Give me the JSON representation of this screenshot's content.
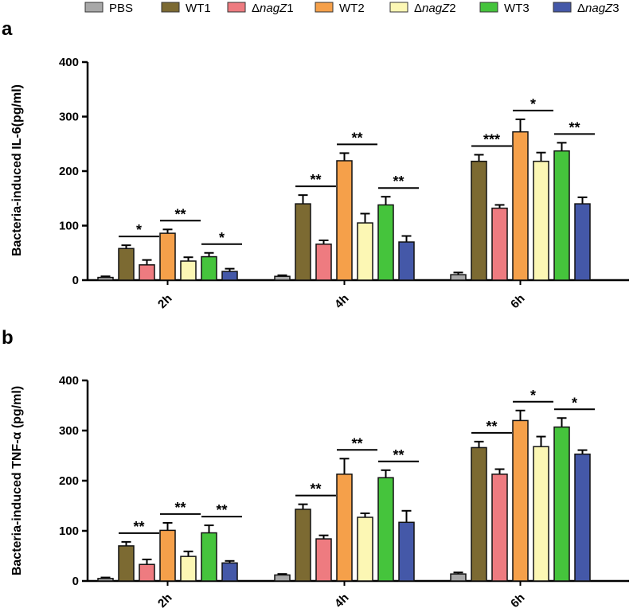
{
  "legend": [
    {
      "label": "PBS",
      "italic": ""
    },
    {
      "label": "WT1",
      "italic": ""
    },
    {
      "label": "Δ",
      "italic": "nagZ",
      "suffix": "1"
    },
    {
      "label": "WT2",
      "italic": ""
    },
    {
      "label": "Δ",
      "italic": "nagZ",
      "suffix": "2"
    },
    {
      "label": "WT3",
      "italic": ""
    },
    {
      "label": "Δ",
      "italic": "nagZ",
      "suffix": "3"
    }
  ],
  "colors": [
    "#a8a8a8",
    "#7c6a32",
    "#ee7b80",
    "#f5a04a",
    "#fcf7b4",
    "#45c43c",
    "#4458a8"
  ],
  "chart_data": [
    {
      "panel": "a",
      "type": "bar",
      "ylabel": "Bacteria-induced IL-6(pg/ml)",
      "ylim": [
        0,
        400
      ],
      "yticks": [
        "0",
        "100",
        "200",
        "300",
        "400"
      ],
      "categories": [
        "2h",
        "4h",
        "6h"
      ],
      "series": [
        {
          "name": "PBS",
          "values": [
            5,
            7,
            10
          ],
          "errors": [
            2,
            2,
            4
          ]
        },
        {
          "name": "WT1",
          "values": [
            58,
            140,
            218
          ],
          "errors": [
            6,
            16,
            12
          ]
        },
        {
          "name": "ΔnagZ1",
          "values": [
            28,
            66,
            132
          ],
          "errors": [
            9,
            7,
            6
          ]
        },
        {
          "name": "WT2",
          "values": [
            86,
            219,
            272
          ],
          "errors": [
            7,
            14,
            23
          ]
        },
        {
          "name": "ΔnagZ2",
          "values": [
            35,
            105,
            218
          ],
          "errors": [
            7,
            17,
            16
          ]
        },
        {
          "name": "WT3",
          "values": [
            43,
            138,
            237
          ],
          "errors": [
            7,
            15,
            15
          ]
        },
        {
          "name": "ΔnagZ3",
          "values": [
            16,
            70,
            140
          ],
          "errors": [
            5,
            11,
            12
          ]
        }
      ],
      "significance": [
        {
          "group": 0,
          "pair": [
            1,
            2
          ],
          "text": "*"
        },
        {
          "group": 0,
          "pair": [
            3,
            4
          ],
          "text": "**"
        },
        {
          "group": 0,
          "pair": [
            5,
            6
          ],
          "text": "*"
        },
        {
          "group": 1,
          "pair": [
            1,
            2
          ],
          "text": "**"
        },
        {
          "group": 1,
          "pair": [
            3,
            4
          ],
          "text": "**"
        },
        {
          "group": 1,
          "pair": [
            5,
            6
          ],
          "text": "**"
        },
        {
          "group": 2,
          "pair": [
            1,
            2
          ],
          "text": "***"
        },
        {
          "group": 2,
          "pair": [
            3,
            4
          ],
          "text": "*"
        },
        {
          "group": 2,
          "pair": [
            5,
            6
          ],
          "text": "**"
        }
      ]
    },
    {
      "panel": "b",
      "type": "bar",
      "ylabel": "Bacteria-induced TNF-α  (pg/ml)",
      "ylim": [
        0,
        400
      ],
      "yticks": [
        "0",
        "100",
        "200",
        "300",
        "400"
      ],
      "categories": [
        "2h",
        "4h",
        "6h"
      ],
      "series": [
        {
          "name": "PBS",
          "values": [
            5,
            12,
            14
          ],
          "errors": [
            2,
            2,
            3
          ]
        },
        {
          "name": "WT1",
          "values": [
            70,
            143,
            266
          ],
          "errors": [
            8,
            10,
            12
          ]
        },
        {
          "name": "ΔnagZ1",
          "values": [
            33,
            84,
            213
          ],
          "errors": [
            10,
            7,
            10
          ]
        },
        {
          "name": "WT2",
          "values": [
            101,
            213,
            320
          ],
          "errors": [
            15,
            31,
            20
          ]
        },
        {
          "name": "ΔnagZ2",
          "values": [
            49,
            127,
            268
          ],
          "errors": [
            10,
            8,
            20
          ]
        },
        {
          "name": "WT3",
          "values": [
            96,
            206,
            307
          ],
          "errors": [
            15,
            15,
            18
          ]
        },
        {
          "name": "ΔnagZ3",
          "values": [
            36,
            117,
            253
          ],
          "errors": [
            4,
            23,
            8
          ]
        }
      ],
      "significance": [
        {
          "group": 0,
          "pair": [
            1,
            2
          ],
          "text": "**"
        },
        {
          "group": 0,
          "pair": [
            3,
            4
          ],
          "text": "**"
        },
        {
          "group": 0,
          "pair": [
            5,
            6
          ],
          "text": "**"
        },
        {
          "group": 1,
          "pair": [
            1,
            2
          ],
          "text": "**"
        },
        {
          "group": 1,
          "pair": [
            3,
            4
          ],
          "text": "**"
        },
        {
          "group": 1,
          "pair": [
            5,
            6
          ],
          "text": "**"
        },
        {
          "group": 2,
          "pair": [
            1,
            2
          ],
          "text": "**"
        },
        {
          "group": 2,
          "pair": [
            3,
            4
          ],
          "text": "*"
        },
        {
          "group": 2,
          "pair": [
            5,
            6
          ],
          "text": "*"
        }
      ]
    }
  ]
}
